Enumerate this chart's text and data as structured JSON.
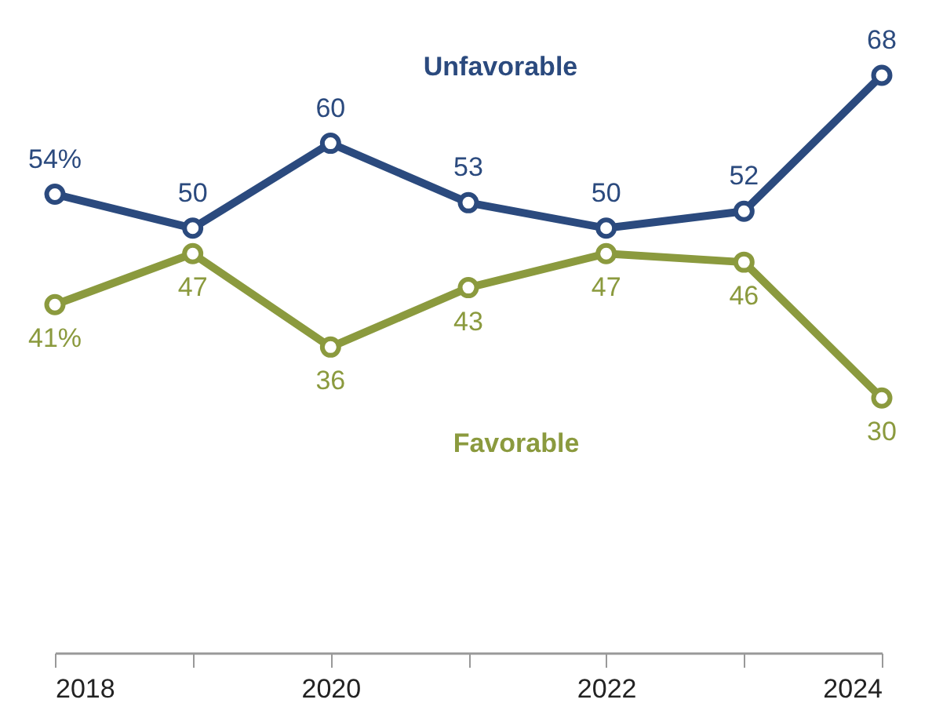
{
  "chart_data": {
    "type": "line",
    "x": [
      2018,
      2019,
      2020,
      2021,
      2022,
      2023,
      2024
    ],
    "xlim": [
      2018,
      2024
    ],
    "xticks": [
      2018,
      {
        "value": 2019,
        "label": null
      },
      2020,
      {
        "value": 2021,
        "label": null
      },
      2022,
      {
        "value": 2023,
        "label": null
      },
      2024
    ],
    "tick_labels": "x",
    "series": [
      {
        "name": "Unfavorable",
        "color": "#2b4a7e",
        "values": [
          54,
          50,
          60,
          53,
          50,
          52,
          68
        ],
        "value_labels": [
          "54%",
          "50",
          "60",
          "53",
          "50",
          "52",
          "68"
        ]
      },
      {
        "name": "Favorable",
        "color": "#8b9a3e",
        "values": [
          41,
          47,
          36,
          43,
          47,
          46,
          30
        ],
        "value_labels": [
          "41%",
          "47",
          "36",
          "43",
          "47",
          "46",
          "30"
        ]
      }
    ],
    "marker": "circle",
    "line_style": "solid",
    "grid": false
  }
}
